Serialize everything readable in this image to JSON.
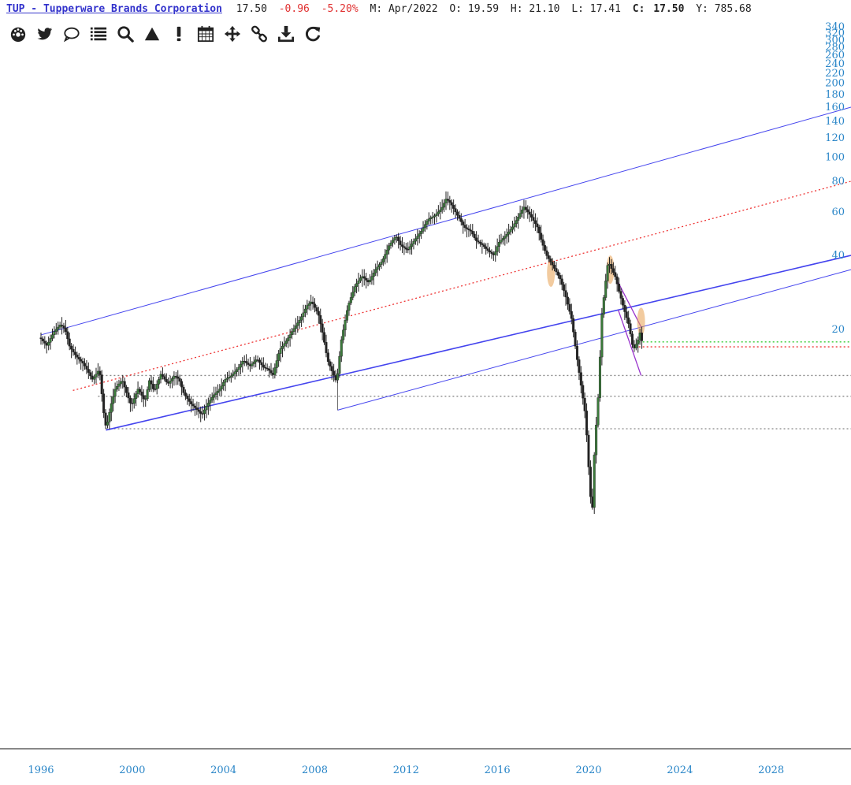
{
  "quote": {
    "ticker_link": "TUP - Tupperware Brands Corporation",
    "last": "17.50",
    "change": "-0.96",
    "change_pct": "-5.20%",
    "period": "M: Apr/2022",
    "open": "O: 19.59",
    "high": "H: 21.10",
    "low": "L: 17.41",
    "close_label": "C:",
    "close_value": "17.50",
    "volume": "Y: 785.68"
  },
  "toolbar": [
    {
      "name": "dashboard-icon"
    },
    {
      "name": "twitter-icon"
    },
    {
      "name": "comment-icon"
    },
    {
      "name": "list-icon"
    },
    {
      "name": "search-icon"
    },
    {
      "name": "triangle-icon"
    },
    {
      "name": "alert-icon"
    },
    {
      "name": "calendar-icon"
    },
    {
      "name": "move-icon"
    },
    {
      "name": "link-icon"
    },
    {
      "name": "download-icon"
    },
    {
      "name": "refresh-icon"
    }
  ],
  "colors": {
    "accent": "#2a86c8",
    "channel": "#4444ee",
    "midline": "#ee3333",
    "green_level": "#33cc33",
    "red_level": "#ee3333",
    "gray_level": "#888888",
    "candle": "#222222",
    "highlight": "#e8a050"
  },
  "chart_data": {
    "type": "candlestick",
    "scale": "log",
    "ylim": [
      4,
      340
    ],
    "xlim": [
      1996,
      2031.5
    ],
    "y_ticks": [
      20,
      40,
      60,
      80,
      100,
      120,
      140,
      160,
      180,
      200,
      220,
      240,
      260,
      280,
      300,
      320,
      340
    ],
    "x_ticks": [
      1996,
      2000,
      2004,
      2008,
      2012,
      2016,
      2020,
      2024,
      2028
    ],
    "price_path": [
      [
        1996.0,
        18.5
      ],
      [
        1996.3,
        17.2
      ],
      [
        1996.6,
        19.5
      ],
      [
        1996.9,
        21.0
      ],
      [
        1997.1,
        20.0
      ],
      [
        1997.3,
        17.0
      ],
      [
        1997.6,
        15.5
      ],
      [
        1997.9,
        14.5
      ],
      [
        1998.1,
        13.5
      ],
      [
        1998.3,
        12.5
      ],
      [
        1998.6,
        13.8
      ],
      [
        1998.8,
        9.0
      ],
      [
        1998.9,
        7.9
      ],
      [
        1999.1,
        9.8
      ],
      [
        1999.3,
        11.5
      ],
      [
        1999.6,
        12.5
      ],
      [
        1999.8,
        11.0
      ],
      [
        2000.0,
        9.8
      ],
      [
        2000.3,
        11.5
      ],
      [
        2000.6,
        10.2
      ],
      [
        2000.8,
        12.5
      ],
      [
        2001.0,
        11.2
      ],
      [
        2001.3,
        13.2
      ],
      [
        2001.6,
        12.0
      ],
      [
        2001.9,
        13.0
      ],
      [
        2002.1,
        12.5
      ],
      [
        2002.3,
        11.0
      ],
      [
        2002.6,
        10.0
      ],
      [
        2002.9,
        9.4
      ],
      [
        2003.1,
        9.0
      ],
      [
        2003.3,
        9.8
      ],
      [
        2003.6,
        10.8
      ],
      [
        2003.9,
        11.5
      ],
      [
        2004.1,
        12.5
      ],
      [
        2004.4,
        13.0
      ],
      [
        2004.7,
        14.0
      ],
      [
        2004.9,
        15.0
      ],
      [
        2005.2,
        14.2
      ],
      [
        2005.5,
        15.2
      ],
      [
        2005.8,
        14.0
      ],
      [
        2006.0,
        13.8
      ],
      [
        2006.2,
        13.0
      ],
      [
        2006.5,
        16.5
      ],
      [
        2006.8,
        18.0
      ],
      [
        2007.1,
        20.0
      ],
      [
        2007.4,
        22.0
      ],
      [
        2007.7,
        25.0
      ],
      [
        2007.9,
        26.0
      ],
      [
        2008.2,
        23.0
      ],
      [
        2008.4,
        19.0
      ],
      [
        2008.6,
        15.0
      ],
      [
        2008.8,
        13.5
      ],
      [
        2009.0,
        12.2
      ],
      [
        2009.2,
        18.0
      ],
      [
        2009.5,
        25.0
      ],
      [
        2009.8,
        30.0
      ],
      [
        2010.1,
        33.0
      ],
      [
        2010.4,
        31.0
      ],
      [
        2010.7,
        35.0
      ],
      [
        2011.0,
        38.0
      ],
      [
        2011.3,
        44.0
      ],
      [
        2011.6,
        48.0
      ],
      [
        2011.8,
        44.0
      ],
      [
        2012.1,
        42.0
      ],
      [
        2012.4,
        46.0
      ],
      [
        2012.7,
        50.0
      ],
      [
        2013.0,
        56.0
      ],
      [
        2013.3,
        58.0
      ],
      [
        2013.6,
        62.0
      ],
      [
        2013.8,
        68.0
      ],
      [
        2014.0,
        65.0
      ],
      [
        2014.3,
        58.0
      ],
      [
        2014.6,
        52.0
      ],
      [
        2014.9,
        50.0
      ],
      [
        2015.1,
        46.0
      ],
      [
        2015.4,
        44.0
      ],
      [
        2015.6,
        42.0
      ],
      [
        2015.9,
        40.0
      ],
      [
        2016.1,
        45.0
      ],
      [
        2016.4,
        48.0
      ],
      [
        2016.7,
        52.0
      ],
      [
        2016.9,
        56.0
      ],
      [
        2017.2,
        63.0
      ],
      [
        2017.5,
        58.0
      ],
      [
        2017.8,
        52.0
      ],
      [
        2018.0,
        45.0
      ],
      [
        2018.2,
        40.0
      ],
      [
        2018.5,
        36.0
      ],
      [
        2018.8,
        32.0
      ],
      [
        2019.0,
        28.0
      ],
      [
        2019.3,
        22.0
      ],
      [
        2019.5,
        16.0
      ],
      [
        2019.7,
        12.0
      ],
      [
        2019.9,
        9.0
      ],
      [
        2020.0,
        6.5
      ],
      [
        2020.1,
        4.4
      ],
      [
        2020.2,
        3.6
      ],
      [
        2020.3,
        6.5
      ],
      [
        2020.5,
        12.0
      ],
      [
        2020.6,
        22.0
      ],
      [
        2020.8,
        32.0
      ],
      [
        2020.9,
        38.0
      ],
      [
        2021.0,
        36.0
      ],
      [
        2021.2,
        33.0
      ],
      [
        2021.4,
        28.0
      ],
      [
        2021.6,
        24.0
      ],
      [
        2021.8,
        21.0
      ],
      [
        2022.0,
        16.5
      ],
      [
        2022.2,
        18.0
      ],
      [
        2022.3,
        19.5
      ],
      [
        2022.4,
        17.5
      ]
    ],
    "trend_lines": [
      {
        "kind": "upper-channel",
        "from": [
          1996.0,
          19.0
        ],
        "to": [
          2031.5,
          160.0
        ]
      },
      {
        "kind": "lower-channel-main",
        "from": [
          1998.85,
          7.8
        ],
        "to": [
          2031.5,
          40.0
        ]
      },
      {
        "kind": "lower-channel-secondary",
        "from": [
          2009.0,
          9.4
        ],
        "to": [
          2031.5,
          35.0
        ]
      },
      {
        "kind": "mid-dotted",
        "from": [
          1997.4,
          11.3
        ],
        "to": [
          2031.5,
          80.0
        ]
      },
      {
        "kind": "vertical-2009",
        "from": [
          2009.0,
          12.2
        ],
        "to": [
          2009.0,
          9.4
        ]
      },
      {
        "kind": "wedge-upper",
        "from": [
          2021.3,
          31.0
        ],
        "to": [
          2022.3,
          20.5
        ]
      },
      {
        "kind": "wedge-lower",
        "from": [
          2021.3,
          24.0
        ],
        "to": [
          2022.3,
          13.0
        ]
      }
    ],
    "horizontal_levels": [
      {
        "style": "green-dotted",
        "value": 17.8,
        "from": 2022.2
      },
      {
        "style": "red-dotted",
        "value": 17.0,
        "from": 2022.2
      },
      {
        "style": "gray-dotted",
        "value": 13.0,
        "from": 1998.5
      },
      {
        "style": "gray-dotted",
        "value": 10.7,
        "from": 1998.5
      },
      {
        "style": "gray-dotted",
        "value": 7.9,
        "from": 1998.85
      }
    ],
    "highlights": [
      {
        "x": 2018.35,
        "y": 34.0
      },
      {
        "x": 2020.95,
        "y": 35.0
      },
      {
        "x": 2022.3,
        "y": 21.5
      }
    ]
  }
}
